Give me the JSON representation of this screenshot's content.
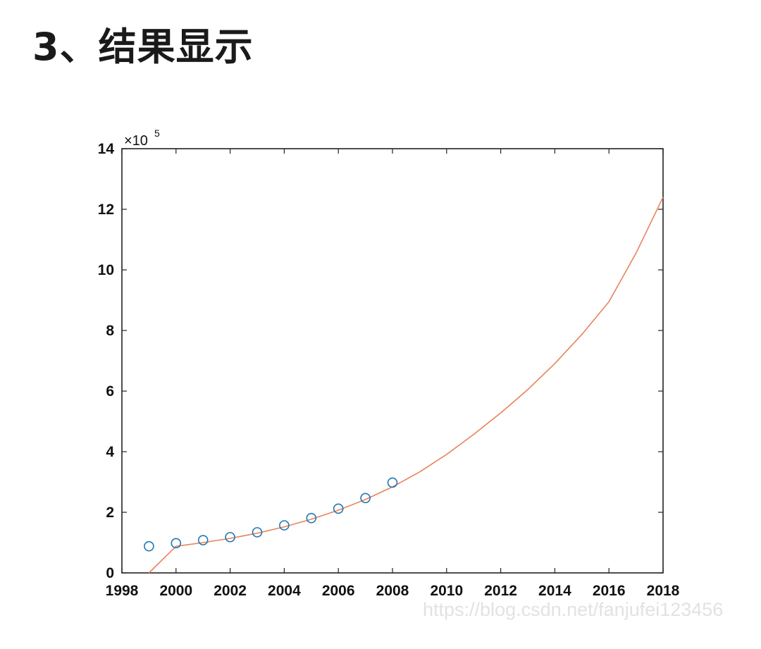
{
  "heading": "3、结果显示",
  "watermark": "https://blog.csdn.net/fanjufei123456",
  "chart_data": {
    "type": "scatter",
    "exponent_label": "×10",
    "exponent_value": "5",
    "x_ticks": [
      "1998",
      "2000",
      "2002",
      "2004",
      "2006",
      "2008",
      "2010",
      "2012",
      "2014",
      "2016",
      "2018"
    ],
    "y_ticks": [
      "0",
      "2",
      "4",
      "6",
      "8",
      "10",
      "12",
      "14"
    ],
    "xlim": [
      1998,
      2018
    ],
    "ylim": [
      0,
      14
    ],
    "y_scale_factor": 100000,
    "grid": false,
    "series": [
      {
        "kind": "markers",
        "color": "#1f77b4",
        "marker": "circle",
        "x": [
          1999,
          2000,
          2001,
          2002,
          2003,
          2004,
          2005,
          2006,
          2007,
          2008
        ],
        "y": [
          0.88,
          0.98,
          1.08,
          1.18,
          1.34,
          1.57,
          1.81,
          2.12,
          2.47,
          2.98
        ]
      },
      {
        "kind": "line",
        "color": "#e8825a",
        "x": [
          1999,
          2000,
          2001,
          2002,
          2003,
          2004,
          2005,
          2006,
          2007,
          2008,
          2009,
          2010,
          2011,
          2012,
          2013,
          2014,
          2015,
          2016,
          2017,
          2018
        ],
        "y": [
          0.0,
          0.88,
          1.0,
          1.14,
          1.31,
          1.52,
          1.77,
          2.07,
          2.42,
          2.84,
          3.33,
          3.91,
          4.57,
          5.28,
          6.05,
          6.91,
          7.87,
          8.95,
          10.55,
          12.4
        ]
      }
    ]
  }
}
